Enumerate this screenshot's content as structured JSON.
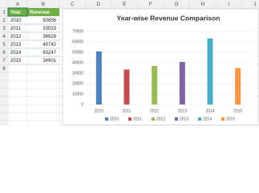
{
  "sheet": {
    "columns": [
      "A",
      "B",
      "C",
      "D",
      "E",
      "F",
      "G",
      "H",
      "I",
      "J"
    ],
    "rows": [
      "1",
      "2",
      "3",
      "4",
      "5",
      "6",
      "7",
      "8"
    ],
    "table_header": [
      "Year",
      "Revenue"
    ]
  },
  "chart_data": {
    "type": "bar",
    "title": "Year-wise Revenue Comparison",
    "categories": [
      "2010",
      "2011",
      "2012",
      "2013",
      "2014",
      "2015"
    ],
    "values": [
      50856,
      33533,
      36928,
      40742,
      63247,
      34901
    ],
    "colors": [
      "#4f81bd",
      "#c0504d",
      "#9bbb59",
      "#8064a2",
      "#4bacc6",
      "#f79646"
    ],
    "ylim": [
      0,
      70000
    ],
    "yticks": [
      0,
      10000,
      20000,
      30000,
      40000,
      50000,
      60000,
      70000
    ],
    "grid": true,
    "legend": "bottom"
  }
}
